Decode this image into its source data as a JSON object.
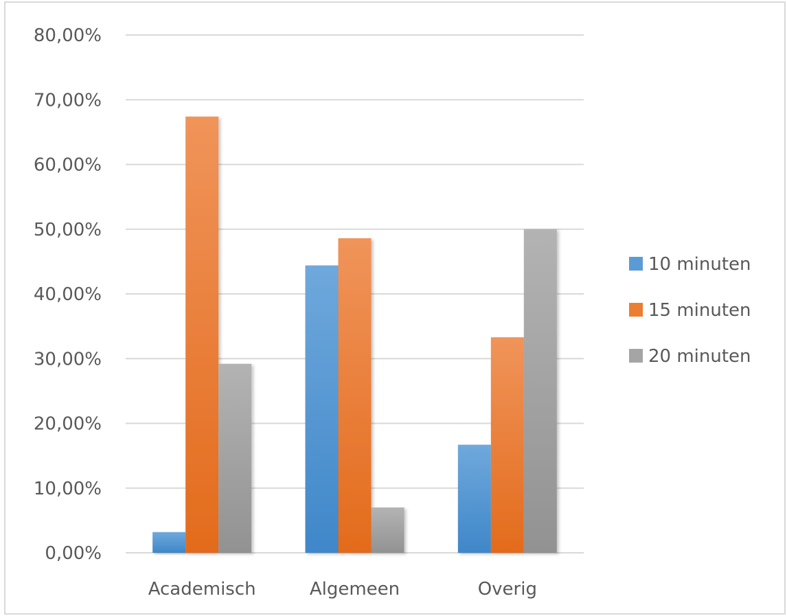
{
  "chart_data": {
    "type": "bar",
    "categories": [
      "Academisch",
      "Algemeen",
      "Overig"
    ],
    "series": [
      {
        "name": "10 minuten",
        "values": [
          3.2,
          44.4,
          16.7
        ],
        "color": "#5b9bd5"
      },
      {
        "name": "15 minuten",
        "values": [
          67.4,
          48.6,
          33.3
        ],
        "color": "#ed7d31"
      },
      {
        "name": "20 minuten",
        "values": [
          29.2,
          7.0,
          50.0
        ],
        "color": "#a5a5a5"
      }
    ],
    "y_tick_labels": [
      "0,00%",
      "10,00%",
      "20,00%",
      "30,00%",
      "40,00%",
      "50,00%",
      "60,00%",
      "70,00%",
      "80,00%"
    ],
    "ylim": [
      0,
      80
    ],
    "grid": true,
    "legend_position": "right"
  }
}
